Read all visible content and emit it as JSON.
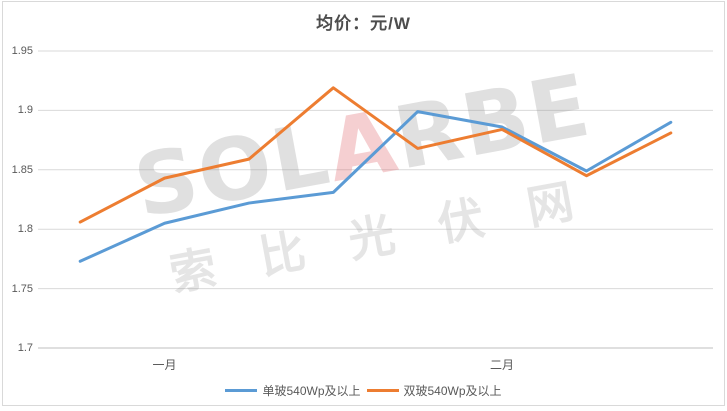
{
  "chart_data": {
    "type": "line",
    "title": "均价：元/W",
    "num_points": 8,
    "ylim": [
      1.7,
      1.95
    ],
    "y_tick_step": 0.05,
    "grid": true,
    "legend_position": "bottom",
    "x_month_labels": [
      {
        "text": "一月",
        "point_index": 1
      },
      {
        "text": "二月",
        "point_index": 5
      }
    ],
    "series": [
      {
        "name": "单玻540Wp及以上",
        "color": "#5B9BD5",
        "values": [
          1.773,
          1.805,
          1.822,
          1.831,
          1.899,
          1.886,
          1.849,
          1.89
        ]
      },
      {
        "name": "双玻540Wp及以上",
        "color": "#ED7D31",
        "values": [
          1.806,
          1.843,
          1.859,
          1.919,
          1.868,
          1.884,
          1.845,
          1.881
        ]
      }
    ],
    "colors": {
      "grid_line": "#D9D9D9",
      "axis_line": "#BFBFBF",
      "tick_label": "#595959",
      "title": "#4d4d4d",
      "chart_border": "#D9D9D9",
      "background": "#FFFFFF"
    }
  },
  "watermark": {
    "latin_pre": "SOL",
    "latin_accent": "A",
    "latin_post": "RBE",
    "cjk": "索 比 光 伏 网"
  }
}
